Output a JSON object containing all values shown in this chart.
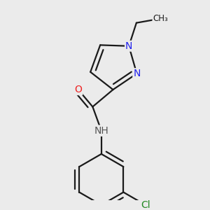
{
  "bg_color": "#ebebeb",
  "bond_color": "#1a1a1a",
  "bond_width": 1.6,
  "atom_colors": {
    "N": "#2222ee",
    "O": "#ee2222",
    "Cl": "#228822",
    "H": "#555555",
    "C": "#1a1a1a"
  },
  "figsize": [
    3.0,
    3.0
  ],
  "dpi": 100,
  "font_size": 10
}
